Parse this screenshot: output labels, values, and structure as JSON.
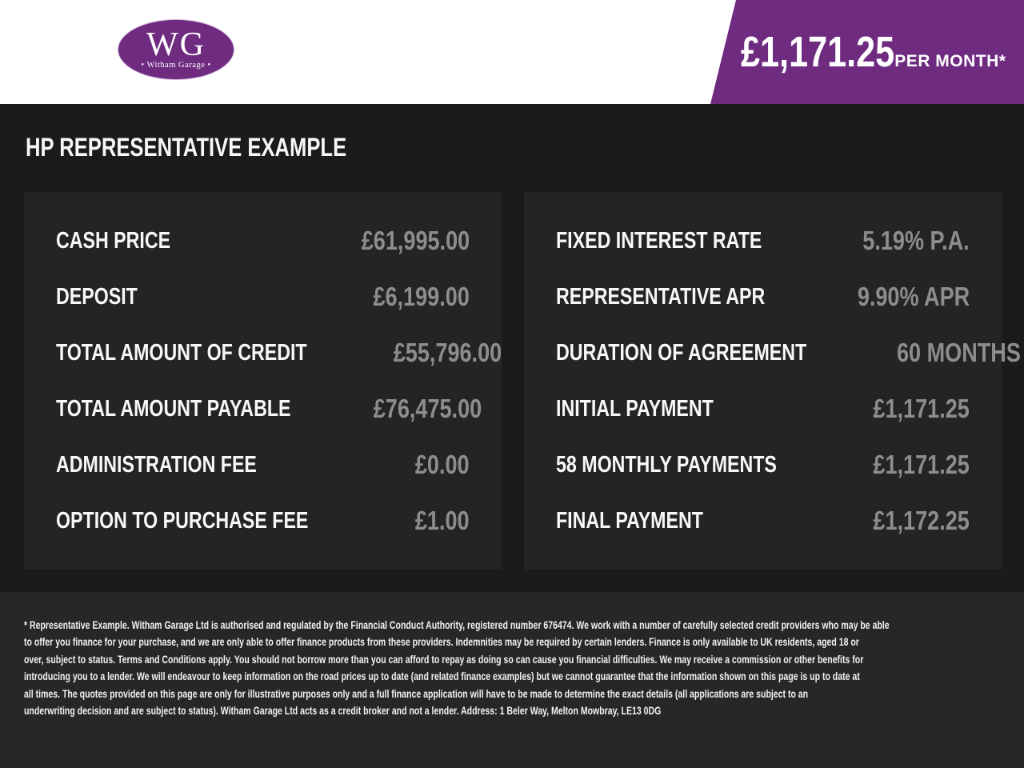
{
  "colors": {
    "brand_purple": "#6E2B80",
    "header_bg": "#ffffff",
    "page_bg": "#1b1b1b",
    "panel_bg": "#242424",
    "footer_bg": "#272727",
    "value_gray": "#8d8d8d"
  },
  "header": {
    "logo": {
      "initials": "WG",
      "name_decorated": "• Witham Garage •"
    },
    "banner": {
      "amount": "£1,171.25",
      "period": "PER MONTH*"
    }
  },
  "main": {
    "title": "HP REPRESENTATIVE EXAMPLE"
  },
  "tables": {
    "left": {
      "rows": [
        {
          "label": "CASH PRICE",
          "value": "£61,995.00"
        },
        {
          "label": "DEPOSIT",
          "value": "£6,199.00"
        },
        {
          "label": "TOTAL AMOUNT OF CREDIT",
          "value": "£55,796.00"
        },
        {
          "label": "TOTAL AMOUNT PAYABLE",
          "value": "£76,475.00"
        },
        {
          "label": "ADMINISTRATION FEE",
          "value": "£0.00"
        },
        {
          "label": "OPTION TO PURCHASE FEE",
          "value": "£1.00"
        }
      ]
    },
    "right": {
      "rows": [
        {
          "label": "FIXED INTEREST RATE",
          "value": "5.19% P.A."
        },
        {
          "label": "REPRESENTATIVE APR",
          "value": "9.90% APR"
        },
        {
          "label": "DURATION OF AGREEMENT",
          "value": "60 MONTHS"
        },
        {
          "label": "INITIAL PAYMENT",
          "value": "£1,171.25"
        },
        {
          "label": "58 MONTHLY PAYMENTS",
          "value": "£1,171.25"
        },
        {
          "label": "FINAL PAYMENT",
          "value": "£1,172.25"
        }
      ]
    }
  },
  "disclaimer": {
    "lines": [
      "* Representative Example. Witham Garage Ltd is authorised and regulated by the Financial Conduct Authority, registered number 676474. We work with a number of carefully selected credit providers who may be able",
      "to offer you finance for your purchase, and we are only able to offer finance products from these providers. Indemnities may be required by certain lenders. Finance is only available to UK residents, aged 18 or",
      "over, subject to status. Terms and Conditions apply. You should not borrow more than you can afford to repay as doing so can cause you financial difficulties. We may receive a commission or other benefits for",
      "introducing you to a lender. We will endeavour to keep information on the road prices up to date (and related finance examples) but we cannot guarantee that the information shown on this page is up to date at",
      "all times. The quotes provided on this page are only for illustrative purposes only and a full finance application will have to be made to determine the exact details (all applications are subject to an",
      "underwriting decision and are subject to status). Witham Garage Ltd acts as a credit broker and not a lender. Address: 1 Beler Way, Melton Mowbray, LE13 0DG"
    ]
  }
}
